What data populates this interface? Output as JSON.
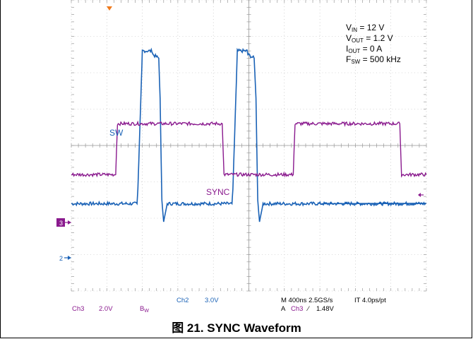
{
  "chart_data": {
    "type": "line",
    "xlim": [
      0,
      4000
    ],
    "grid": true,
    "series": [
      {
        "name": "SW",
        "x": [
          0,
          740,
          750,
          790,
          800,
          910,
          920,
          985,
          1000,
          1020,
          1040,
          1080,
          1500,
          1810,
          1820,
          1860,
          1870,
          1980,
          1990,
          2060,
          2080,
          2100,
          2120,
          2160,
          2820
        ],
        "y": [
          -1.6,
          -1.6,
          -1.2,
          1.8,
          2.6,
          2.6,
          2.5,
          2.4,
          1.3,
          -1.5,
          -2.1,
          -1.6,
          -1.6,
          -1.6,
          -1.2,
          1.8,
          2.6,
          2.6,
          2.5,
          2.4,
          1.3,
          -1.5,
          -2.1,
          -1.6,
          -1.6
        ]
      },
      {
        "name": "SYNC",
        "x": [
          0,
          500,
          520,
          1700,
          1720,
          2500,
          2520,
          3700,
          3720,
          4000
        ],
        "y": [
          -0.8,
          -0.8,
          0.6,
          0.6,
          -0.8,
          -0.8,
          0.6,
          0.6,
          -0.8,
          -0.8
        ]
      }
    ],
    "annotations": {
      "params": [
        {
          "name": "V",
          "sub": "IN",
          "value": " = 12 V"
        },
        {
          "name": "V",
          "sub": "OUT",
          "value": " = 1.2 V"
        },
        {
          "name": "I",
          "sub": "OUT",
          "value": " = 0 A"
        },
        {
          "name": "F",
          "sub": "SW",
          "value": " = 500 kHz"
        }
      ],
      "marker_3": "3",
      "marker_2": "2",
      "status": {
        "ch2_label": "Ch2",
        "ch2_scale": "3.0V",
        "ch3_label": "Ch3",
        "ch3_scale": "2.0V",
        "bw": "B",
        "bw_sub": "W",
        "timebase": "M 400ns 2.5GS/s",
        "it": "IT 4.0ps/pt",
        "trigger_a": "A",
        "trigger_src": "Ch3",
        "trigger_slope": "∕",
        "trigger_level": "1.48V"
      }
    },
    "colors": {
      "sw": "#1a62b6",
      "sync": "#8a1a8e",
      "grid": "#b5b5b5",
      "status_text": "#8a1a8e",
      "status_blue": "#1a62b6",
      "trigger_marker": "#f07a1c"
    }
  },
  "figure": {
    "caption": "图 21. SYNC Waveform"
  }
}
